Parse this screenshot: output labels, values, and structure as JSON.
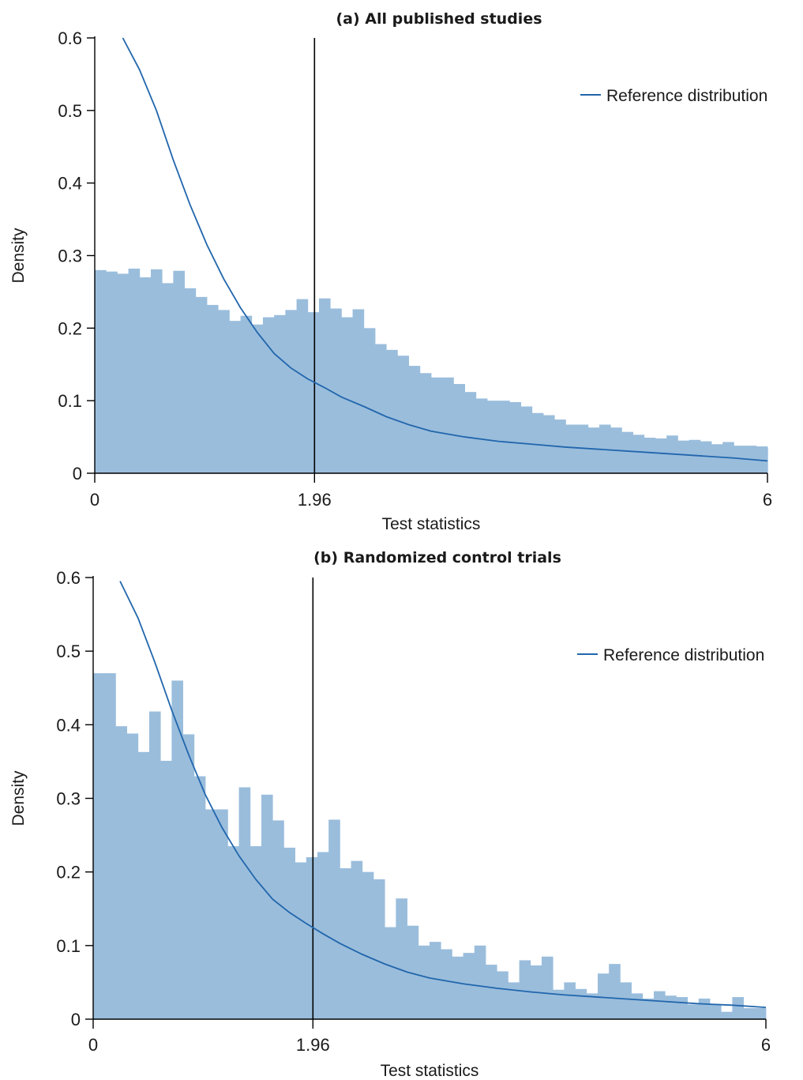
{
  "chart_data": [
    {
      "type": "bar",
      "title": "(a) All published studies",
      "xlabel": "Test statistics",
      "ylabel": "Density",
      "xlim": [
        0,
        6
      ],
      "ylim": [
        0,
        0.6
      ],
      "xticks": [
        "0",
        "1.96",
        "6"
      ],
      "yticks": [
        "0",
        "0.1",
        "0.2",
        "0.3",
        "0.4",
        "0.5",
        "0.6"
      ],
      "vline_x": 1.96,
      "legend_position": "top-right",
      "series": [
        {
          "name": "Reference distribution",
          "type": "line",
          "color": "#2166ac",
          "x": [
            0.25,
            0.4,
            0.55,
            0.7,
            0.85,
            1.0,
            1.15,
            1.3,
            1.45,
            1.6,
            1.75,
            1.9,
            2.05,
            2.2,
            2.4,
            2.6,
            2.8,
            3.0,
            3.3,
            3.6,
            3.9,
            4.2,
            4.5,
            4.8,
            5.1,
            5.4,
            5.7,
            6.0
          ],
          "y": [
            0.6,
            0.556,
            0.5,
            0.432,
            0.37,
            0.315,
            0.268,
            0.228,
            0.194,
            0.165,
            0.145,
            0.13,
            0.118,
            0.105,
            0.092,
            0.078,
            0.067,
            0.058,
            0.05,
            0.044,
            0.04,
            0.036,
            0.033,
            0.03,
            0.027,
            0.024,
            0.021,
            0.017
          ]
        },
        {
          "name": "",
          "type": "histogram",
          "color": "#9abddc",
          "bin_start": 0,
          "bin_width": 0.1,
          "values": [
            0.28,
            0.278,
            0.275,
            0.282,
            0.27,
            0.281,
            0.262,
            0.279,
            0.255,
            0.243,
            0.232,
            0.225,
            0.21,
            0.217,
            0.205,
            0.215,
            0.218,
            0.225,
            0.24,
            0.222,
            0.241,
            0.227,
            0.215,
            0.226,
            0.2,
            0.178,
            0.17,
            0.162,
            0.148,
            0.138,
            0.132,
            0.132,
            0.123,
            0.112,
            0.103,
            0.1,
            0.1,
            0.098,
            0.092,
            0.083,
            0.08,
            0.074,
            0.067,
            0.067,
            0.063,
            0.067,
            0.063,
            0.057,
            0.053,
            0.049,
            0.048,
            0.052,
            0.045,
            0.046,
            0.044,
            0.04,
            0.043,
            0.038,
            0.038,
            0.037,
            0.035
          ]
        }
      ]
    },
    {
      "type": "bar",
      "title": "(b) Randomized control trials",
      "xlabel": "Test statistics",
      "ylabel": "Density",
      "xlim": [
        0,
        6
      ],
      "ylim": [
        0,
        0.6
      ],
      "xticks": [
        "0",
        "1.96",
        "6"
      ],
      "yticks": [
        "0",
        "0.1",
        "0.2",
        "0.3",
        "0.4",
        "0.5",
        "0.6"
      ],
      "vline_x": 1.96,
      "legend_position": "top-right",
      "series": [
        {
          "name": "Reference distribution",
          "type": "line",
          "color": "#2166ac",
          "x": [
            0.24,
            0.4,
            0.55,
            0.7,
            0.85,
            1.0,
            1.15,
            1.3,
            1.45,
            1.6,
            1.75,
            1.9,
            2.05,
            2.2,
            2.4,
            2.6,
            2.8,
            3.0,
            3.3,
            3.6,
            3.9,
            4.2,
            4.5,
            4.8,
            5.1,
            5.4,
            5.7,
            6.0
          ],
          "y": [
            0.595,
            0.545,
            0.485,
            0.42,
            0.36,
            0.305,
            0.26,
            0.222,
            0.19,
            0.163,
            0.145,
            0.13,
            0.116,
            0.103,
            0.088,
            0.075,
            0.064,
            0.056,
            0.048,
            0.042,
            0.037,
            0.033,
            0.03,
            0.027,
            0.024,
            0.021,
            0.019,
            0.016
          ]
        },
        {
          "name": "",
          "type": "histogram",
          "color": "#9abddc",
          "bin_start": 0,
          "bin_width": 0.1,
          "values": [
            0.47,
            0.47,
            0.398,
            0.388,
            0.363,
            0.418,
            0.351,
            0.46,
            0.387,
            0.33,
            0.285,
            0.285,
            0.235,
            0.315,
            0.235,
            0.305,
            0.27,
            0.233,
            0.213,
            0.22,
            0.227,
            0.271,
            0.205,
            0.215,
            0.2,
            0.19,
            0.125,
            0.164,
            0.127,
            0.1,
            0.105,
            0.095,
            0.085,
            0.09,
            0.1,
            0.074,
            0.065,
            0.05,
            0.08,
            0.073,
            0.085,
            0.04,
            0.05,
            0.041,
            0.035,
            0.062,
            0.075,
            0.05,
            0.035,
            0.028,
            0.038,
            0.032,
            0.03,
            0.02,
            0.028,
            0.02,
            0.01,
            0.03,
            0.015,
            0.015
          ]
        }
      ]
    }
  ]
}
